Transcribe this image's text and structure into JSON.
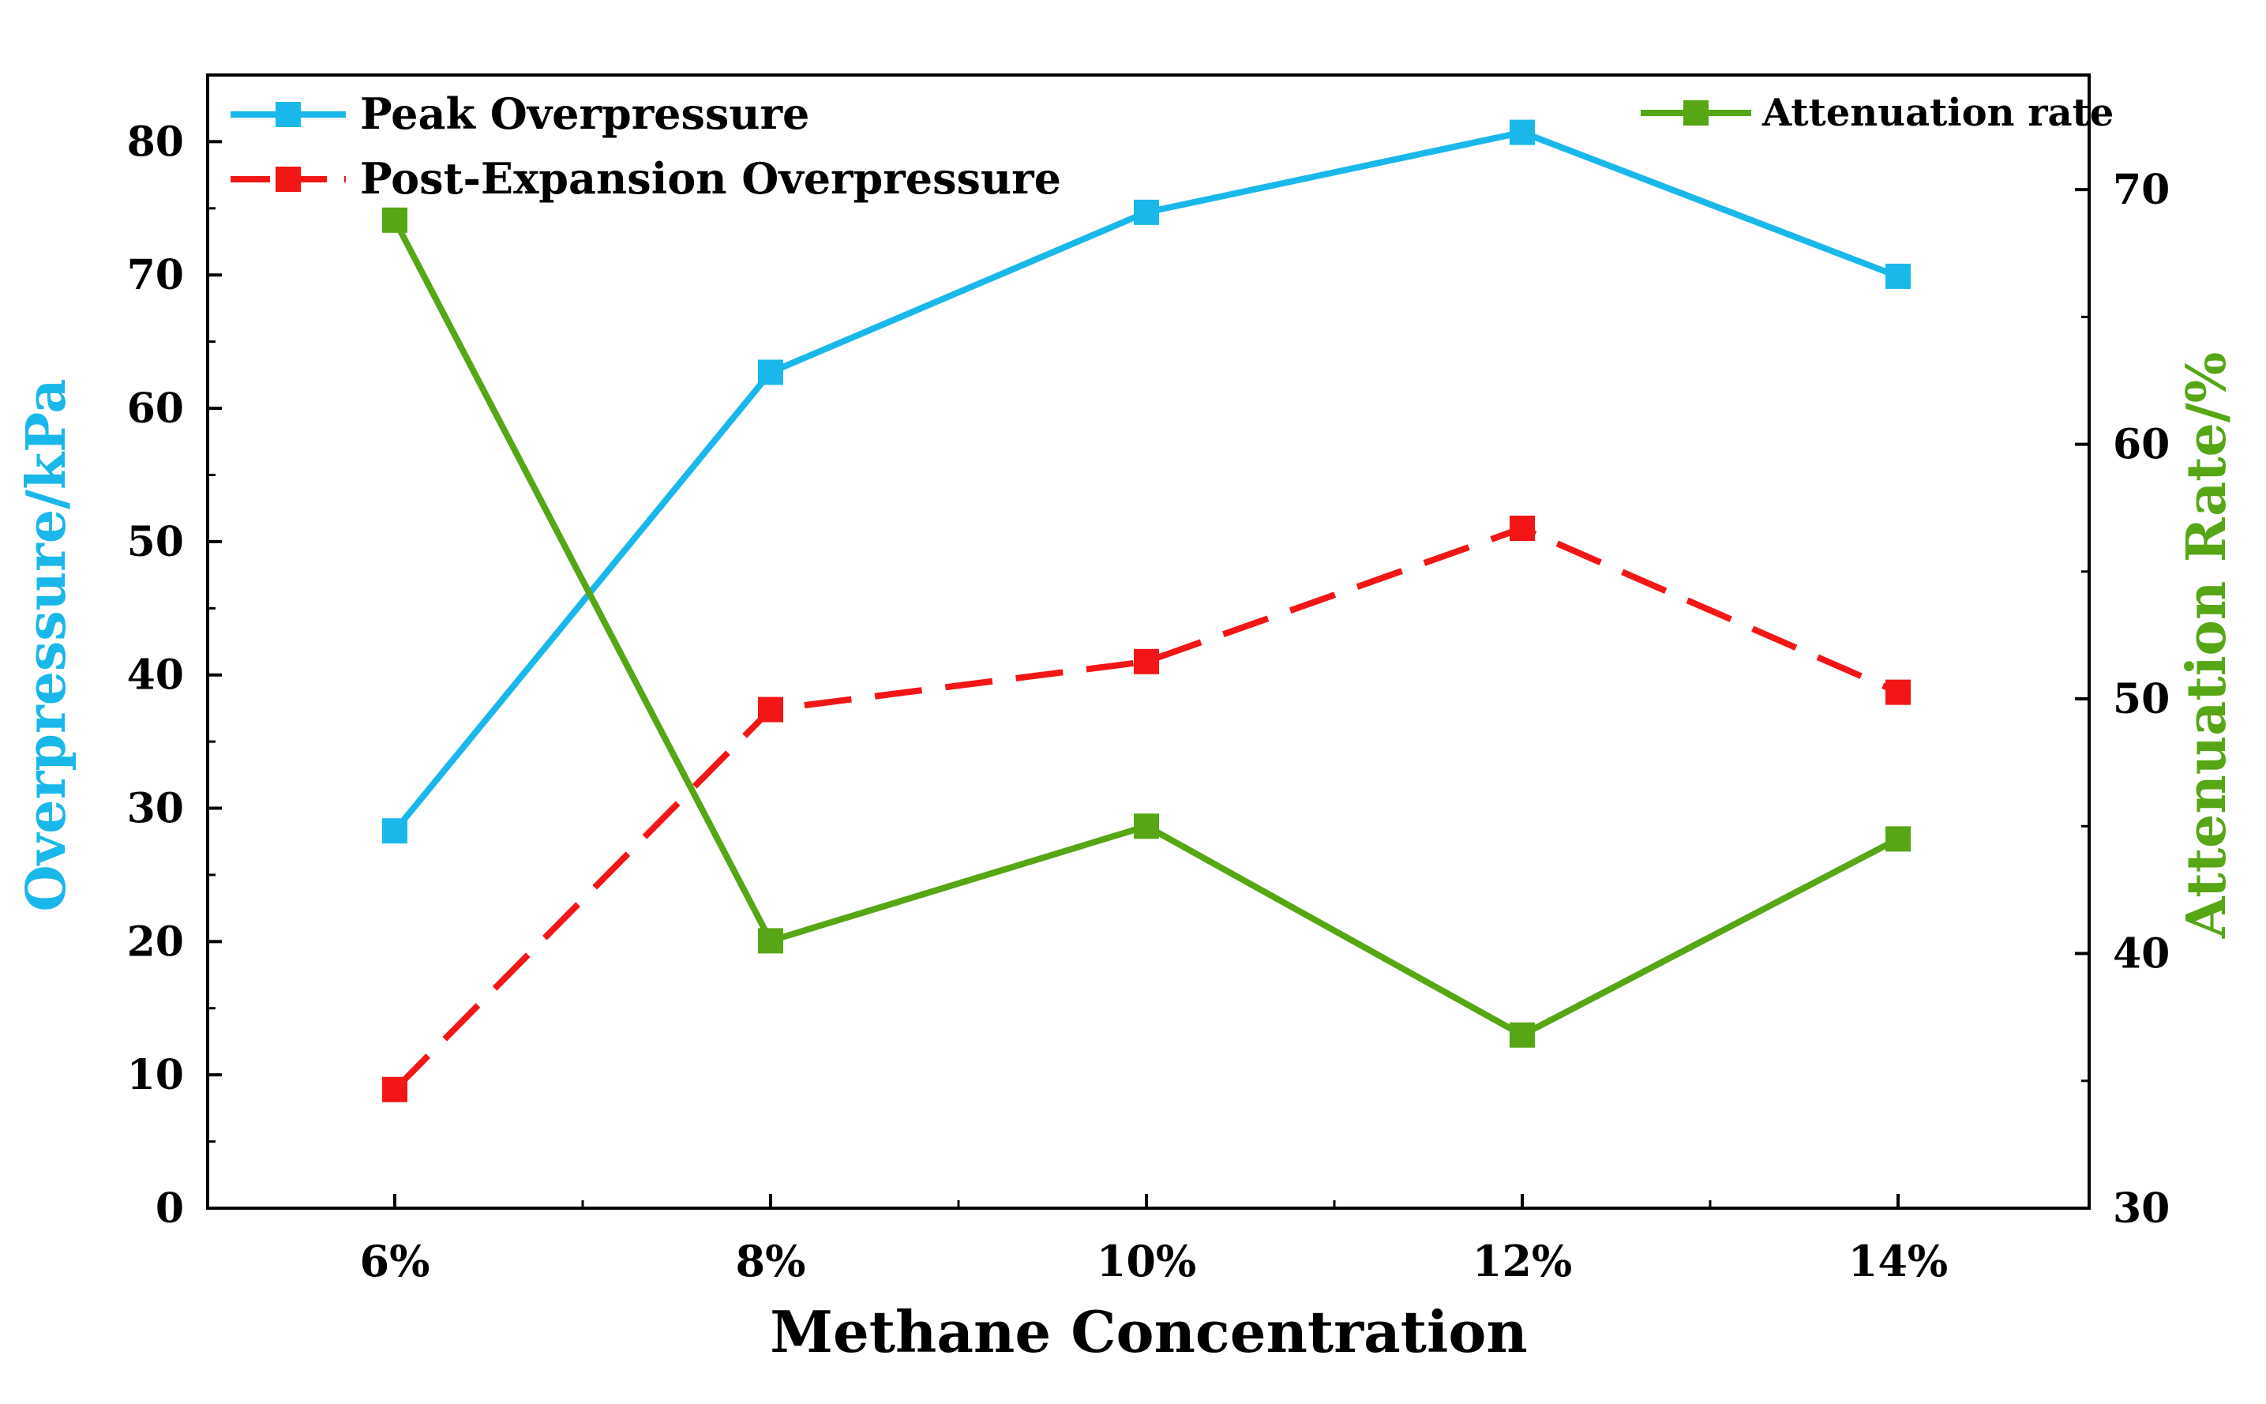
{
  "chart_data": {
    "type": "line",
    "title": "",
    "xlabel": "Methane Concentration",
    "ylabel_left": "Overpressure/kPa",
    "ylabel_right": "Attenuation Rate/%",
    "categories": [
      "6%",
      "8%",
      "10%",
      "12%",
      "14%"
    ],
    "ylim_left": [
      0,
      85
    ],
    "yticks_left": [
      "0",
      "10",
      "20",
      "30",
      "40",
      "50",
      "60",
      "70",
      "80"
    ],
    "ylim_right": [
      30,
      74.5
    ],
    "yticks_right": [
      "30",
      "40",
      "50",
      "60",
      "70"
    ],
    "series": [
      {
        "name": "Peak Overpressure",
        "axis": "left",
        "color": "#1ab8ea",
        "dash": false,
        "values": [
          28.3,
          62.7,
          74.7,
          80.7,
          69.9
        ]
      },
      {
        "name": "Post-Expansion Overpressure",
        "axis": "left",
        "color": "#f21616",
        "dash": true,
        "values": [
          8.9,
          37.4,
          41.0,
          51.0,
          38.7
        ]
      },
      {
        "name": "Attenuation rate",
        "axis": "right",
        "color": "#56a615",
        "dash": false,
        "values": [
          68.8,
          40.5,
          45.0,
          36.8,
          44.5
        ]
      }
    ],
    "legend_left": [
      "Peak Overpressure",
      "Post-Expansion Overpressure"
    ],
    "legend_right": [
      "Attenuation rate"
    ],
    "axis_colors": {
      "left_label": "#1ab8ea",
      "right_label": "#56a615",
      "axis": "#000000"
    }
  }
}
